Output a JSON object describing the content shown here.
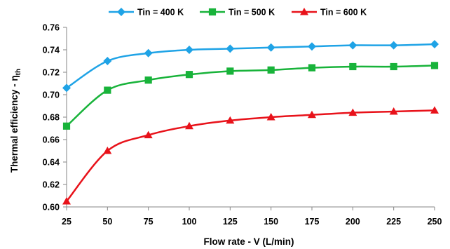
{
  "chart_data": {
    "type": "line",
    "xlabel": "Flow rate - V (L/min)",
    "ylabel_main": "Thermal efficiency - η",
    "ylabel_sub": "th",
    "x": [
      25,
      50,
      75,
      100,
      125,
      150,
      175,
      200,
      225,
      250
    ],
    "x_ticks": [
      "25",
      "50",
      "75",
      "100",
      "125",
      "150",
      "175",
      "200",
      "225",
      "250"
    ],
    "y_ticks": [
      "0.60",
      "0.62",
      "0.64",
      "0.66",
      "0.68",
      "0.70",
      "0.72",
      "0.74",
      "0.76"
    ],
    "ylim": [
      0.6,
      0.76
    ],
    "grid": false,
    "legend_position": "top",
    "series": [
      {
        "name": "Tin = 400 K",
        "color": "#1fa3e6",
        "marker": "diamond",
        "values": [
          0.706,
          0.73,
          0.737,
          0.74,
          0.741,
          0.742,
          0.743,
          0.744,
          0.744,
          0.745
        ]
      },
      {
        "name": "Tin = 500 K",
        "color": "#18b33a",
        "marker": "square",
        "values": [
          0.672,
          0.704,
          0.713,
          0.718,
          0.721,
          0.722,
          0.724,
          0.725,
          0.725,
          0.726
        ]
      },
      {
        "name": "Tin = 600 K",
        "color": "#e8121a",
        "marker": "triangle",
        "values": [
          0.605,
          0.65,
          0.664,
          0.672,
          0.677,
          0.68,
          0.682,
          0.684,
          0.685,
          0.686
        ]
      }
    ]
  }
}
